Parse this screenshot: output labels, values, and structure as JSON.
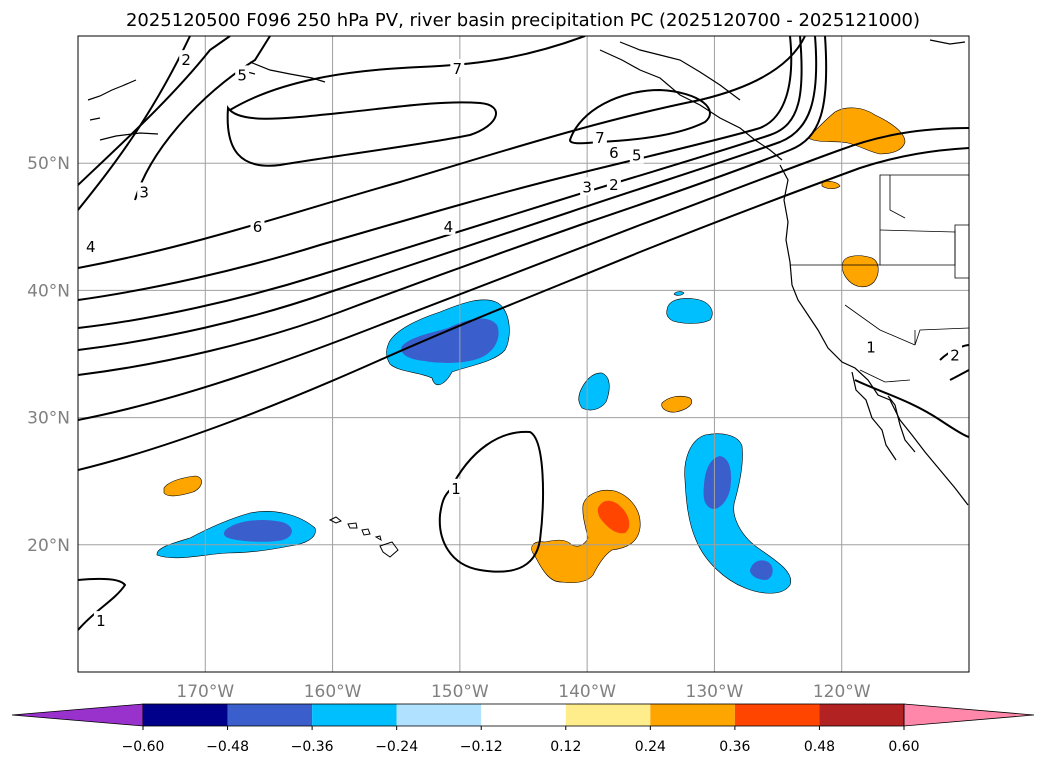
{
  "chart_data": {
    "type": "map",
    "title": "2025120500 F096 250 hPa PV, river basin precipitation PC (2025120700 - 2025121000)",
    "projection": "plate carree",
    "xlim": [
      -180,
      -110
    ],
    "ylim": [
      10,
      60
    ],
    "lon_ticks": [
      {
        "value": -170,
        "label": "170°W"
      },
      {
        "value": -160,
        "label": "160°W"
      },
      {
        "value": -150,
        "label": "150°W"
      },
      {
        "value": -140,
        "label": "140°W"
      },
      {
        "value": -130,
        "label": "130°W"
      },
      {
        "value": -120,
        "label": "120°W"
      }
    ],
    "lat_ticks": [
      {
        "value": 20,
        "label": "20°N"
      },
      {
        "value": 30,
        "label": "30°N"
      },
      {
        "value": 40,
        "label": "40°N"
      },
      {
        "value": 50,
        "label": "50°N"
      }
    ],
    "grid": true,
    "colorbar": {
      "orientation": "horizontal",
      "extend": "both",
      "boundaries": [
        -0.6,
        -0.48,
        -0.36,
        -0.24,
        -0.12,
        0.12,
        0.24,
        0.36,
        0.48,
        0.6
      ],
      "tick_labels": [
        "−0.60",
        "−0.48",
        "−0.36",
        "−0.24",
        "−0.12",
        "0.12",
        "0.24",
        "0.36",
        "0.48",
        "0.60"
      ],
      "colors": [
        "#9932cc",
        "#00008b",
        "#3a5fcd",
        "#00bfff",
        "#b0e2ff",
        "#ffffff",
        "#ffec8b",
        "#ffa500",
        "#ff4500",
        "#b22222",
        "#ff88aa"
      ]
    },
    "pv_contour_levels": [
      1,
      2,
      3,
      4,
      5,
      6,
      7
    ],
    "pv_contour_labels": [
      {
        "text": "2",
        "lon": -171.5,
        "lat": 58.1
      },
      {
        "text": "5",
        "lon": -167.1,
        "lat": 56.9
      },
      {
        "text": "7",
        "lon": -150.2,
        "lat": 57.4
      },
      {
        "text": "3",
        "lon": -174.8,
        "lat": 47.7
      },
      {
        "text": "4",
        "lon": -179.0,
        "lat": 43.4
      },
      {
        "text": "6",
        "lon": -165.9,
        "lat": 45.0
      },
      {
        "text": "4",
        "lon": -150.9,
        "lat": 45.0
      },
      {
        "text": "7",
        "lon": -139.0,
        "lat": 52.0
      },
      {
        "text": "6",
        "lon": -137.9,
        "lat": 50.8
      },
      {
        "text": "5",
        "lon": -136.1,
        "lat": 50.6
      },
      {
        "text": "3",
        "lon": -140.0,
        "lat": 48.1
      },
      {
        "text": "2",
        "lon": -137.9,
        "lat": 48.3
      },
      {
        "text": "1",
        "lon": -150.3,
        "lat": 24.4
      },
      {
        "text": "1",
        "lon": -178.2,
        "lat": 14.0
      },
      {
        "text": "1",
        "lon": -117.7,
        "lat": 35.5
      },
      {
        "text": "2",
        "lon": -111.1,
        "lat": 34.9
      }
    ],
    "precip_pc_regions": [
      {
        "sign": "negative",
        "max_category": "-0.48 to -0.36",
        "center": [
          -151,
          36
        ]
      },
      {
        "sign": "negative",
        "max_category": "-0.48 to -0.36",
        "center": [
          -166,
          21
        ]
      },
      {
        "sign": "negative",
        "max_category": "-0.48 to -0.36",
        "center": [
          -130,
          21
        ]
      },
      {
        "sign": "negative",
        "max_category": "-0.36 to -0.24",
        "center": [
          -139.5,
          32
        ]
      },
      {
        "sign": "negative",
        "max_category": "-0.36 to -0.24",
        "center": [
          -132,
          38.5
        ]
      },
      {
        "sign": "positive",
        "max_category": "0.36 to 0.48",
        "center": [
          -139,
          20.5
        ]
      },
      {
        "sign": "positive",
        "max_category": "0.24 to 0.36",
        "center": [
          -118,
          52
        ]
      },
      {
        "sign": "positive",
        "max_category": "0.24 to 0.36",
        "center": [
          -118.5,
          42
        ]
      },
      {
        "sign": "positive",
        "max_category": "0.24 to 0.36",
        "center": [
          -171.5,
          24.5
        ]
      },
      {
        "sign": "positive",
        "max_category": "0.24 to 0.36",
        "center": [
          -134,
          31.2
        ]
      }
    ]
  }
}
